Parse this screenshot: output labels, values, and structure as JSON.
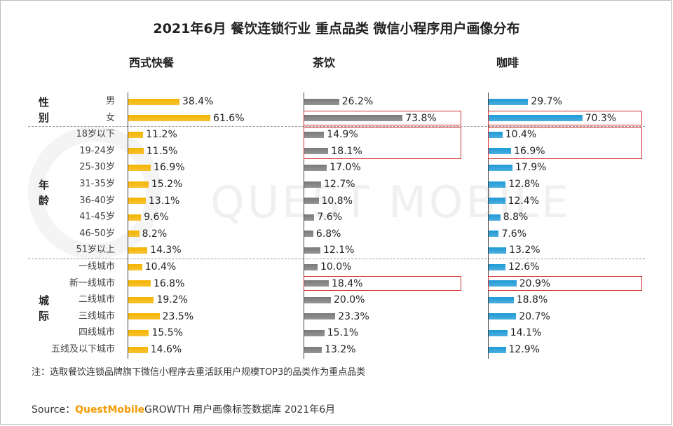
{
  "title": "2021年6月 餐饮连锁行业 重点品类 微信小程序用户画像分布",
  "watermark": "QUEST MOBILE",
  "chart_data": {
    "type": "bar",
    "orientation": "horizontal",
    "unit": "%",
    "groups": [
      {
        "name": "性别",
        "label_chars": [
          "性",
          "别"
        ],
        "categories": [
          "男",
          "女"
        ]
      },
      {
        "name": "年龄",
        "label_chars": [
          "年",
          "龄"
        ],
        "categories": [
          "18岁以下",
          "19-24岁",
          "25-30岁",
          "31-35岁",
          "36-40岁",
          "41-45岁",
          "46-50岁",
          "51岁以上"
        ]
      },
      {
        "name": "城际",
        "label_chars": [
          "城",
          "际"
        ],
        "categories": [
          "一线城市",
          "新一线城市",
          "二线城市",
          "三线城市",
          "四线城市",
          "五线及以下城市"
        ]
      }
    ],
    "categories": [
      "男",
      "女",
      "18岁以下",
      "19-24岁",
      "25-30岁",
      "31-35岁",
      "36-40岁",
      "41-45岁",
      "46-50岁",
      "51岁以上",
      "一线城市",
      "新一线城市",
      "二线城市",
      "三线城市",
      "四线城市",
      "五线及以下城市"
    ],
    "series": [
      {
        "name": "西式快餐",
        "color": "#f5b400",
        "values": [
          38.4,
          61.6,
          11.2,
          11.5,
          16.9,
          15.2,
          13.1,
          9.6,
          8.2,
          14.3,
          10.4,
          16.8,
          19.2,
          23.5,
          15.5,
          14.6
        ],
        "labels": [
          "38.4%",
          "61.6%",
          "11.2%",
          "11.5%",
          "16.9%",
          "15.2%",
          "13.1%",
          "9.6%",
          "8.2%",
          "14.3%",
          "10.4%",
          "16.8%",
          "19.2%",
          "23.5%",
          "15.5%",
          "14.6%"
        ],
        "highlights": []
      },
      {
        "name": "茶饮",
        "color": "#7a7a7a",
        "values": [
          26.2,
          73.8,
          14.9,
          18.1,
          17.0,
          12.7,
          10.8,
          7.6,
          6.8,
          12.1,
          10.0,
          18.4,
          20.0,
          23.3,
          15.1,
          13.2
        ],
        "labels": [
          "26.2%",
          "73.8%",
          "14.9%",
          "18.1%",
          "17.0%",
          "12.7%",
          "10.8%",
          "7.6%",
          "6.8%",
          "12.1%",
          "10.0%",
          "18.4%",
          "20.0%",
          "23.3%",
          "15.1%",
          "13.2%"
        ],
        "highlights": [
          [
            1,
            1
          ],
          [
            2,
            3
          ],
          [
            11,
            11
          ]
        ]
      },
      {
        "name": "咖啡",
        "color": "#1e9ad6",
        "values": [
          29.7,
          70.3,
          10.4,
          16.9,
          17.9,
          12.8,
          12.4,
          8.8,
          7.6,
          13.2,
          12.6,
          20.9,
          18.8,
          20.7,
          14.1,
          12.9
        ],
        "labels": [
          "29.7%",
          "70.3%",
          "10.4%",
          "16.9%",
          "17.9%",
          "12.8%",
          "12.4%",
          "8.8%",
          "7.6%",
          "13.2%",
          "12.6%",
          "20.9%",
          "18.8%",
          "20.7%",
          "14.1%",
          "12.9%"
        ],
        "highlights": [
          [
            1,
            1
          ],
          [
            2,
            3
          ],
          [
            11,
            11
          ]
        ]
      }
    ]
  },
  "note": "注：选取餐饮连锁品牌旗下微信小程序去重活跃用户规模TOP3的品类作为重点品类",
  "source": {
    "prefix": "Source：",
    "brand": "QuestMobile",
    "suffix": "GROWTH 用户画像标签数据库 2021年6月"
  }
}
